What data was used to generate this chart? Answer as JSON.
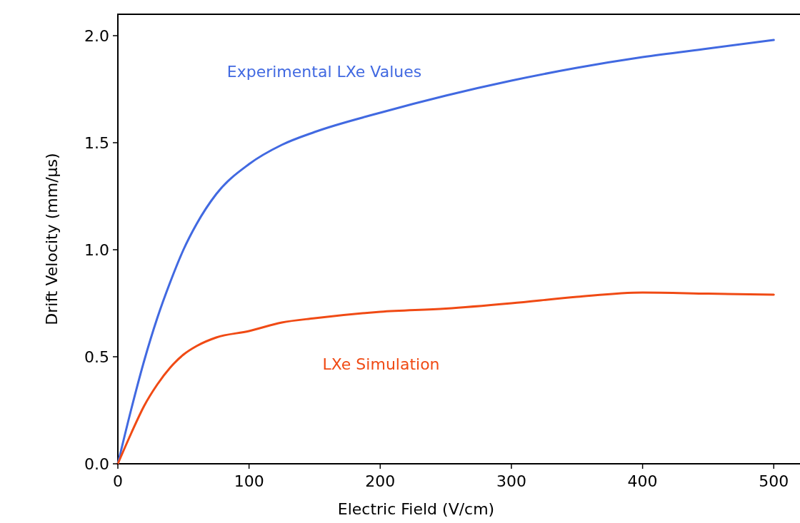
{
  "chart_data": {
    "type": "line",
    "xlabel": "Electric Field (V/cm)",
    "ylabel": "Drift Velocity (mm/µs)",
    "x": [
      0,
      10,
      20,
      30,
      40,
      50,
      60,
      75,
      100,
      125,
      150,
      200,
      250,
      300,
      350,
      400,
      450,
      500
    ],
    "series": [
      {
        "name": "Experimental LXe Values",
        "color": "#4169e1",
        "values": [
          0,
          0.25,
          0.48,
          0.68,
          0.85,
          1.0,
          1.12,
          1.26,
          1.4,
          1.49,
          1.55,
          1.64,
          1.72,
          1.79,
          1.85,
          1.9,
          1.94,
          1.98
        ]
      },
      {
        "name": "LXe Simulation",
        "color": "#f04a14",
        "values": [
          0,
          0.14,
          0.27,
          0.37,
          0.45,
          0.51,
          0.55,
          0.59,
          0.62,
          0.66,
          0.68,
          0.71,
          0.725,
          0.75,
          0.78,
          0.8,
          0.795,
          0.79
        ]
      }
    ],
    "xlim": [
      0,
      520
    ],
    "ylim": [
      0,
      2.1
    ],
    "xticks": [
      0,
      100,
      200,
      300,
      400,
      500
    ],
    "yticks": [
      {
        "value": 0,
        "label": "0.0"
      },
      {
        "value": 0.5,
        "label": "0.5"
      },
      {
        "value": 1,
        "label": "1.0"
      },
      {
        "value": 1.5,
        "label": "1.5"
      },
      {
        "value": 2,
        "label": "2.0"
      }
    ],
    "grid": false,
    "legend": false
  }
}
